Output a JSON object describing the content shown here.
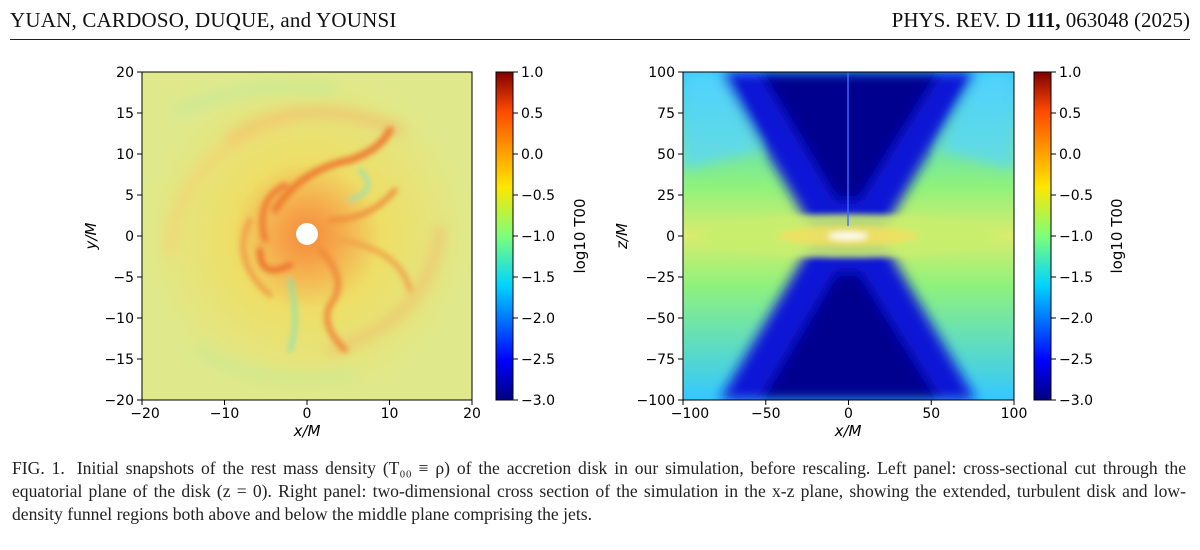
{
  "header": {
    "authors": "YUAN, CARDOSO, DUQUE, and YOUNSI",
    "journal_prefix": "PHYS. REV. D ",
    "volume": "111,",
    "article": " 063048 (2025)"
  },
  "figure": {
    "left_panel": {
      "xlabel": "x/M",
      "ylabel": "y/M",
      "xticks": [
        "−20",
        "−10",
        "0",
        "10",
        "20"
      ],
      "yticks": [
        "20",
        "15",
        "10",
        "5",
        "0",
        "−5",
        "−10",
        "−15",
        "−20"
      ],
      "colorbar_label": "log10 T00",
      "colorbar_ticks": [
        "1.0",
        "0.5",
        "0.0",
        "−0.5",
        "−1.0",
        "−1.5",
        "−2.0",
        "−2.5",
        "−3.0"
      ]
    },
    "right_panel": {
      "xlabel": "x/M",
      "ylabel": "z/M",
      "xticks": [
        "−100",
        "−50",
        "0",
        "50",
        "100"
      ],
      "yticks": [
        "100",
        "75",
        "50",
        "25",
        "0",
        "−25",
        "−50",
        "−75",
        "−100"
      ],
      "colorbar_label": "log10 T00",
      "colorbar_ticks": [
        "1.0",
        "0.5",
        "0.0",
        "−0.5",
        "−1.0",
        "−1.5",
        "−2.0",
        "−2.5",
        "−3.0"
      ]
    },
    "colormap": [
      "#00007f",
      "#0000ff",
      "#00d4ff",
      "#7dff7a",
      "#ffe600",
      "#ff4a00",
      "#7f0000"
    ]
  },
  "caption": {
    "label": "FIG. 1.",
    "text": "Initial snapshots of the rest mass density (T₀₀ ≡ ρ) of the accretion disk in our simulation, before rescaling. Left panel: cross-sectional cut through the equatorial plane of the disk (z = 0). Right panel: two-dimensional cross section of the simulation in the x-z plane, showing the extended, turbulent disk and low-density funnel regions both above and below the middle plane comprising the jets."
  }
}
